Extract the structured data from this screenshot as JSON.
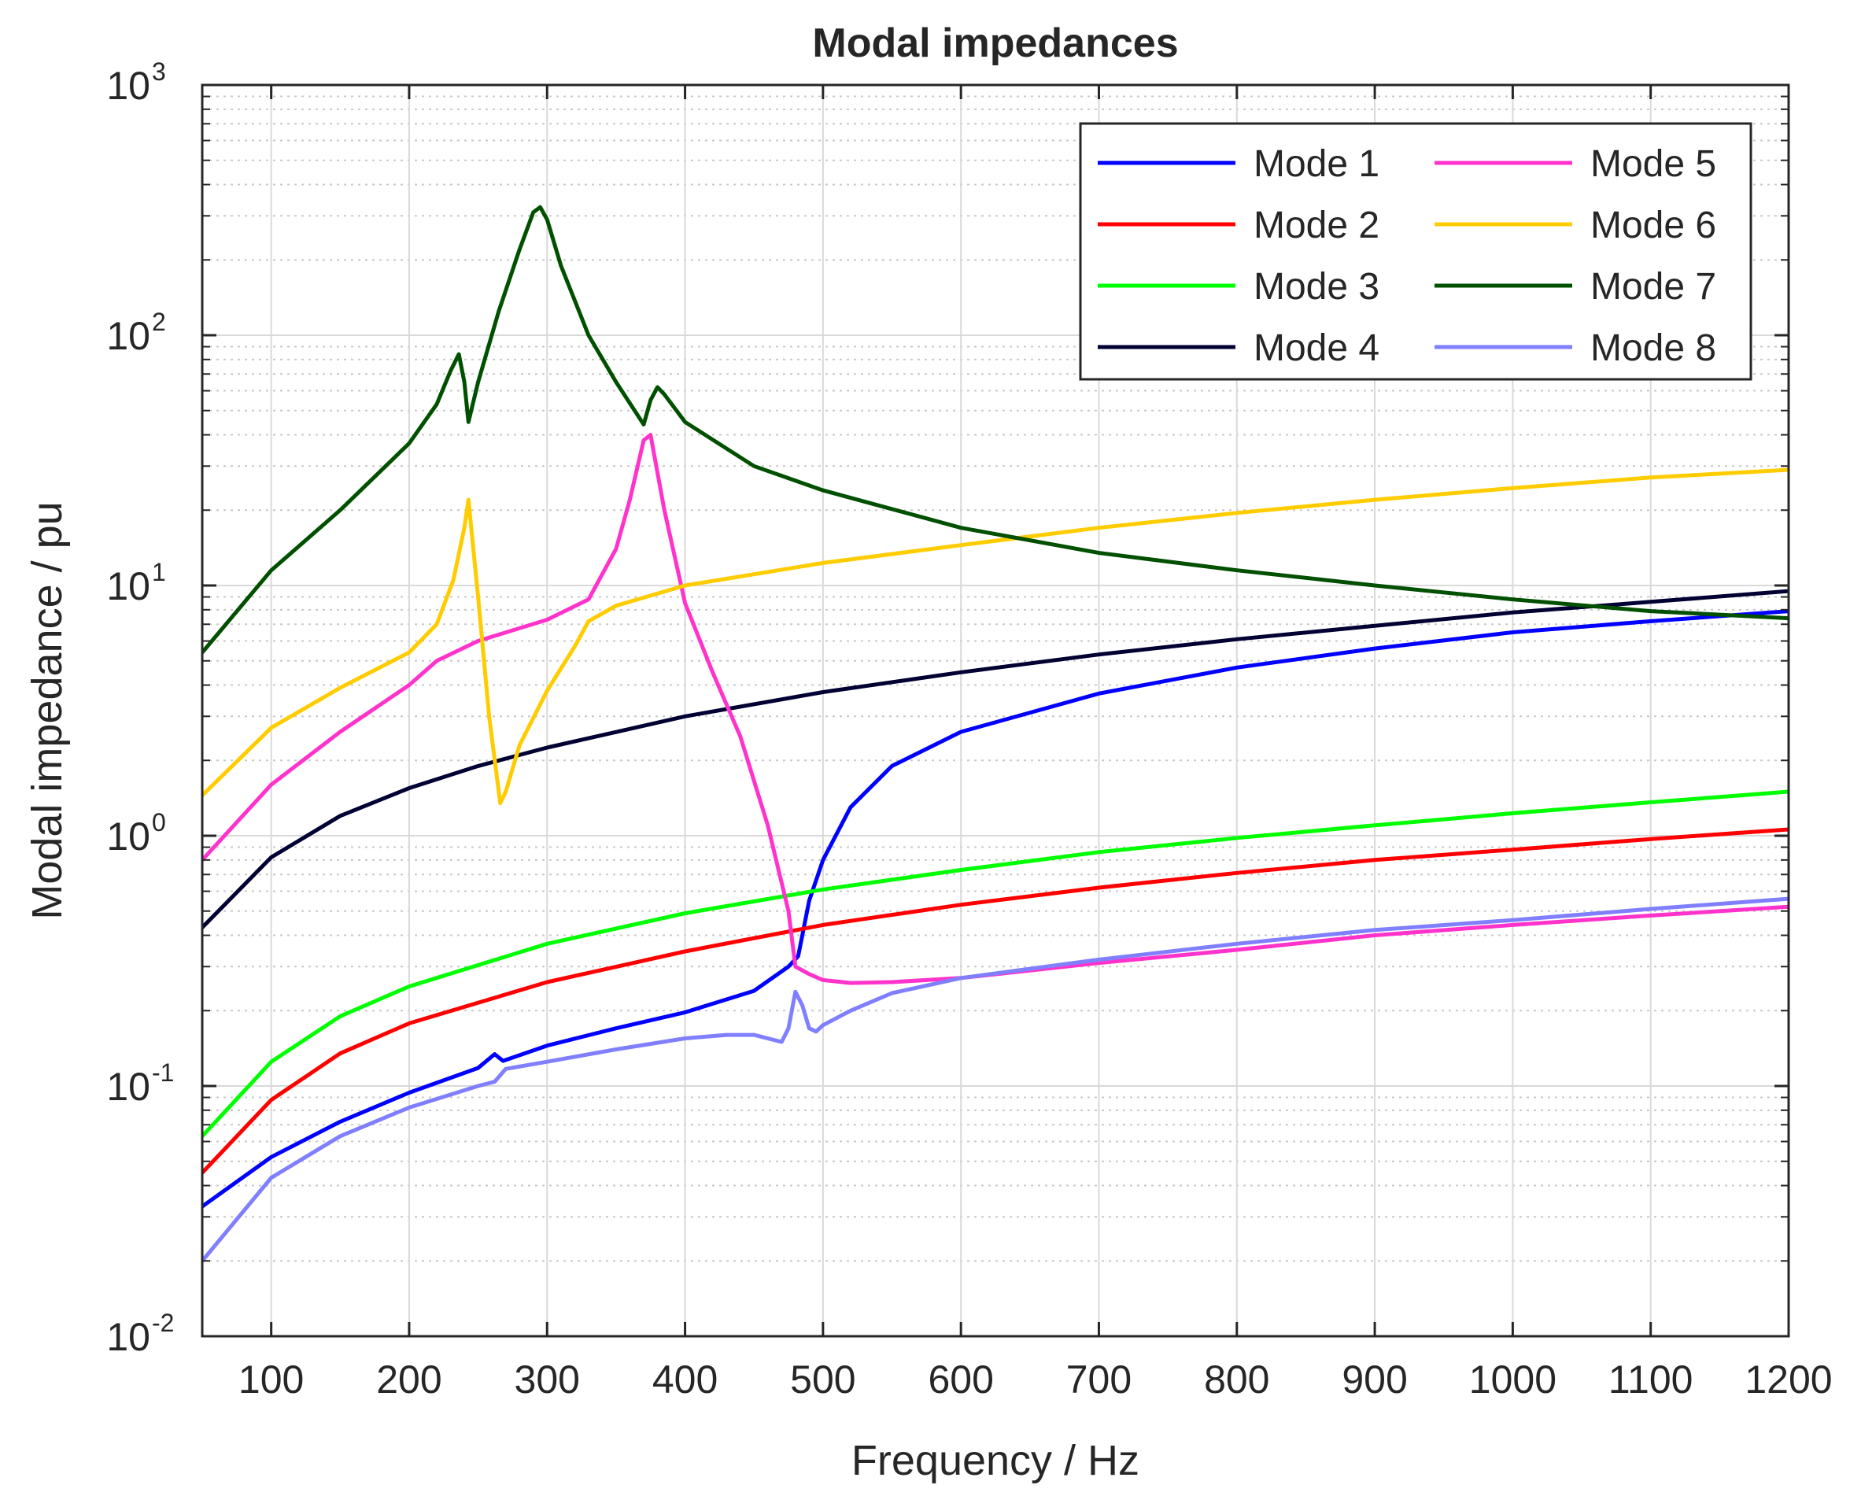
{
  "chart_data": {
    "type": "line",
    "title": "Modal impedances",
    "xlabel": "Frequency / Hz",
    "ylabel": "Modal impedance / pu",
    "xscale": "linear",
    "yscale": "log",
    "xlim": [
      50,
      1200
    ],
    "ylim": [
      0.01,
      1000
    ],
    "x_ticks": [
      100,
      200,
      300,
      400,
      500,
      600,
      700,
      800,
      900,
      1000,
      1100,
      1200
    ],
    "x_tick_labels": [
      "100",
      "200",
      "300",
      "400",
      "500",
      "600",
      "700",
      "800",
      "900",
      "1000",
      "1100",
      "1200"
    ],
    "y_ticks": [
      {
        "value": 0.01,
        "base": "10",
        "exp": "-2"
      },
      {
        "value": 0.1,
        "base": "10",
        "exp": "-1"
      },
      {
        "value": 1,
        "base": "10",
        "exp": "0"
      },
      {
        "value": 10,
        "base": "10",
        "exp": "1"
      },
      {
        "value": 100,
        "base": "10",
        "exp": "2"
      },
      {
        "value": 1000,
        "base": "10",
        "exp": "3"
      }
    ],
    "grid": true,
    "minor_grid": true,
    "legend_position": "top-right",
    "legend_columns": 2,
    "series": [
      {
        "name": "Mode 1",
        "color": "#0000ff",
        "x": [
          50,
          100,
          150,
          200,
          250,
          262,
          268,
          300,
          350,
          400,
          450,
          475,
          482,
          485,
          490,
          500,
          520,
          550,
          600,
          700,
          800,
          900,
          1000,
          1100,
          1200
        ],
        "y": [
          0.033,
          0.052,
          0.072,
          0.094,
          0.118,
          0.134,
          0.126,
          0.145,
          0.17,
          0.197,
          0.24,
          0.3,
          0.33,
          0.4,
          0.55,
          0.8,
          1.3,
          1.9,
          2.6,
          3.7,
          4.7,
          5.6,
          6.5,
          7.2,
          7.9
        ]
      },
      {
        "name": "Mode 2",
        "color": "#ff0000",
        "x": [
          50,
          100,
          150,
          200,
          300,
          400,
          500,
          600,
          700,
          800,
          900,
          1000,
          1100,
          1200
        ],
        "y": [
          0.045,
          0.088,
          0.135,
          0.178,
          0.26,
          0.345,
          0.44,
          0.53,
          0.62,
          0.71,
          0.8,
          0.88,
          0.97,
          1.06
        ]
      },
      {
        "name": "Mode 3",
        "color": "#00ff00",
        "x": [
          50,
          100,
          150,
          200,
          300,
          400,
          500,
          600,
          700,
          800,
          900,
          1000,
          1100,
          1200
        ],
        "y": [
          0.063,
          0.125,
          0.19,
          0.25,
          0.37,
          0.49,
          0.61,
          0.73,
          0.86,
          0.98,
          1.1,
          1.23,
          1.36,
          1.5
        ]
      },
      {
        "name": "Mode 4",
        "color": "#000033",
        "x": [
          50,
          100,
          150,
          200,
          250,
          300,
          400,
          500,
          600,
          700,
          800,
          900,
          1000,
          1100,
          1200
        ],
        "y": [
          0.43,
          0.82,
          1.2,
          1.55,
          1.9,
          2.25,
          3.0,
          3.75,
          4.5,
          5.3,
          6.1,
          6.9,
          7.8,
          8.6,
          9.5
        ]
      },
      {
        "name": "Mode 5",
        "color": "#ff33cc",
        "x": [
          50,
          100,
          150,
          200,
          220,
          250,
          300,
          330,
          350,
          360,
          370,
          375,
          385,
          400,
          420,
          440,
          460,
          475,
          480,
          490,
          500,
          520,
          550,
          600,
          700,
          800,
          900,
          1000,
          1100,
          1200
        ],
        "y": [
          0.8,
          1.6,
          2.6,
          4.0,
          5.0,
          6.0,
          7.3,
          8.8,
          14,
          22,
          38,
          40,
          20,
          8.5,
          4.5,
          2.5,
          1.1,
          0.5,
          0.3,
          0.28,
          0.265,
          0.258,
          0.26,
          0.27,
          0.31,
          0.35,
          0.4,
          0.44,
          0.48,
          0.52
        ]
      },
      {
        "name": "Mode 6",
        "color": "#ffcc00",
        "x": [
          50,
          100,
          150,
          200,
          220,
          232,
          240,
          243,
          250,
          258,
          266,
          270,
          280,
          300,
          320,
          330,
          350,
          400,
          500,
          600,
          700,
          800,
          900,
          1000,
          1100,
          1200
        ],
        "y": [
          1.45,
          2.7,
          3.9,
          5.4,
          7.0,
          10.5,
          17,
          22,
          9.0,
          3.0,
          1.35,
          1.5,
          2.3,
          3.8,
          5.7,
          7.2,
          8.3,
          10,
          12.3,
          14.5,
          17,
          19.5,
          22,
          24.5,
          27,
          29
        ]
      },
      {
        "name": "Mode 7",
        "color": "#005000",
        "x": [
          50,
          100,
          150,
          200,
          220,
          230,
          236,
          240,
          243,
          250,
          265,
          280,
          290,
          295,
          300,
          310,
          330,
          350,
          370,
          375,
          380,
          385,
          400,
          450,
          500,
          600,
          700,
          800,
          900,
          1000,
          1100,
          1200
        ],
        "y": [
          5.4,
          11.5,
          20,
          37,
          53,
          72,
          84,
          65,
          45,
          65,
          125,
          220,
          310,
          325,
          290,
          190,
          100,
          65,
          44,
          55,
          62,
          58,
          45,
          30,
          24,
          17,
          13.5,
          11.5,
          10,
          8.8,
          7.9,
          7.4
        ]
      },
      {
        "name": "Mode 8",
        "color": "#7f7fff",
        "x": [
          50,
          100,
          150,
          200,
          250,
          262,
          270,
          300,
          350,
          400,
          430,
          450,
          470,
          475,
          480,
          485,
          490,
          495,
          500,
          520,
          550,
          600,
          700,
          800,
          900,
          1000,
          1100,
          1200
        ],
        "y": [
          0.02,
          0.043,
          0.063,
          0.082,
          0.1,
          0.104,
          0.117,
          0.125,
          0.14,
          0.155,
          0.16,
          0.16,
          0.15,
          0.17,
          0.238,
          0.21,
          0.17,
          0.165,
          0.175,
          0.2,
          0.235,
          0.27,
          0.32,
          0.37,
          0.42,
          0.46,
          0.51,
          0.56
        ]
      }
    ]
  }
}
